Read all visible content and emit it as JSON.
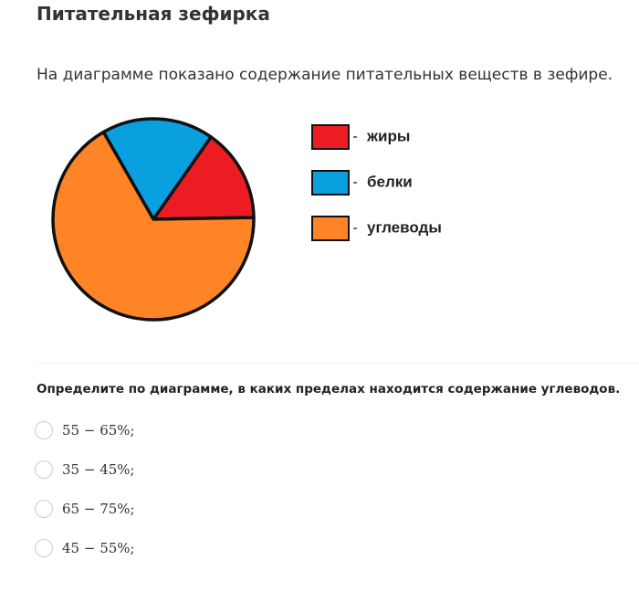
{
  "header": {
    "title": "Питательная зефирка"
  },
  "intro": "На диаграмме показано содержание питательных веществ в зефире.",
  "chart_data": {
    "type": "pie",
    "categories": [
      "жиры",
      "белки",
      "углеводы"
    ],
    "values": [
      15,
      18,
      67
    ],
    "colors": [
      "#ed1c24",
      "#0aa0e0",
      "#ff8426"
    ]
  },
  "question": "Определите по диаграмме, в каких пределах находится содержание углеводов.",
  "options": [
    "55 − 65%;",
    "35 − 45%;",
    "65 − 75%;",
    "45 − 55%;"
  ]
}
